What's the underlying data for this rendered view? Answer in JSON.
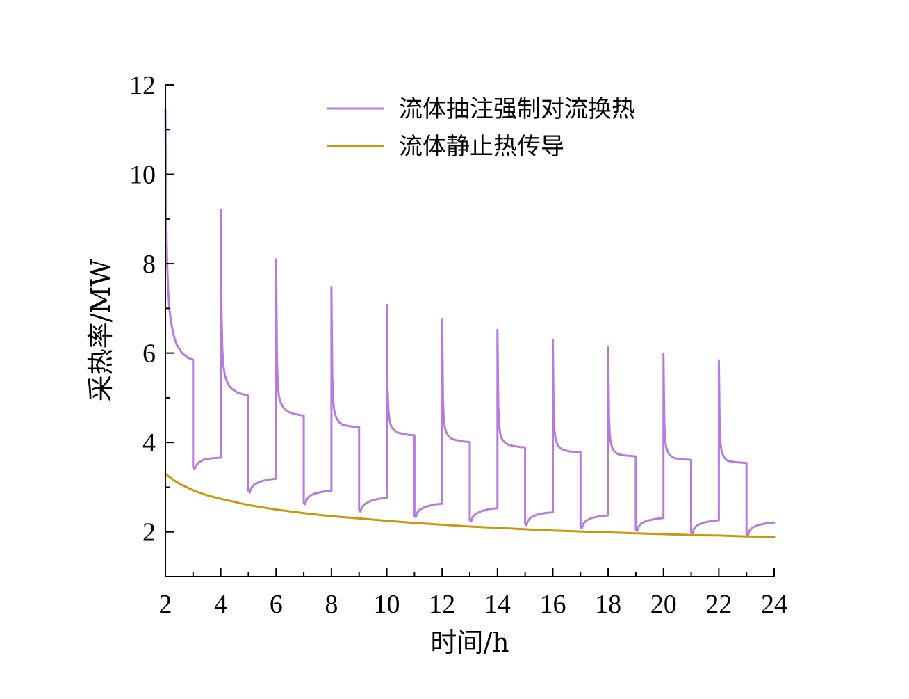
{
  "chart_data": {
    "type": "line",
    "xlabel": "时间/h",
    "ylabel": "采热率/MW",
    "xlim": [
      2,
      24
    ],
    "ylim": [
      1,
      12
    ],
    "xticks": [
      2,
      4,
      6,
      8,
      10,
      12,
      14,
      16,
      18,
      20,
      22,
      24
    ],
    "yticks": [
      2,
      4,
      6,
      8,
      10,
      12
    ],
    "grid": false,
    "legend_position": "top-right",
    "series": [
      {
        "name": "流体抽注强制对流换热",
        "color": "#b57bdf",
        "x": [
          2.0,
          2.03,
          2.06,
          2.1,
          2.15,
          2.2,
          2.3,
          2.4,
          2.6,
          2.8,
          3.0,
          3.0,
          3.05,
          3.1,
          3.2,
          3.4,
          3.7,
          4.0,
          4.0,
          4.03,
          4.06,
          4.1,
          4.15,
          4.2,
          4.3,
          4.4,
          4.6,
          4.8,
          5.0,
          5.0,
          5.05,
          5.1,
          5.2,
          5.4,
          5.7,
          6.0,
          6.0,
          6.03,
          6.06,
          6.1,
          6.15,
          6.2,
          6.3,
          6.4,
          6.6,
          6.8,
          7.0,
          7.0,
          7.05,
          7.1,
          7.2,
          7.4,
          7.7,
          8.0,
          8.0,
          8.03,
          8.06,
          8.1,
          8.15,
          8.2,
          8.3,
          8.4,
          8.6,
          8.8,
          9.0,
          9.0,
          9.05,
          9.1,
          9.2,
          9.4,
          9.7,
          10.0,
          10.0,
          10.03,
          10.06,
          10.1,
          10.15,
          10.2,
          10.3,
          10.4,
          10.6,
          10.8,
          11.0,
          11.0,
          11.05,
          11.1,
          11.2,
          11.4,
          11.7,
          12.0,
          12.0,
          12.03,
          12.06,
          12.1,
          12.15,
          12.2,
          12.3,
          12.4,
          12.6,
          12.8,
          13.0,
          13.0,
          13.05,
          13.1,
          13.2,
          13.4,
          13.7,
          14.0,
          14.0,
          14.03,
          14.06,
          14.1,
          14.15,
          14.2,
          14.3,
          14.4,
          14.6,
          14.8,
          15.0,
          15.0,
          15.05,
          15.1,
          15.2,
          15.4,
          15.7,
          16.0,
          16.0,
          16.03,
          16.06,
          16.1,
          16.15,
          16.2,
          16.3,
          16.4,
          16.6,
          16.8,
          17.0,
          17.0,
          17.05,
          17.1,
          17.2,
          17.4,
          17.7,
          18.0,
          18.0,
          18.03,
          18.06,
          18.1,
          18.15,
          18.2,
          18.3,
          18.4,
          18.6,
          18.8,
          19.0,
          19.0,
          19.05,
          19.1,
          19.2,
          19.4,
          19.7,
          20.0,
          20.0,
          20.03,
          20.06,
          20.1,
          20.15,
          20.2,
          20.3,
          20.4,
          20.6,
          20.8,
          21.0,
          21.0,
          21.05,
          21.1,
          21.2,
          21.4,
          21.7,
          22.0,
          22.0,
          22.03,
          22.06,
          22.1,
          22.15,
          22.2,
          22.3,
          22.4,
          22.6,
          22.8,
          23.0,
          23.0,
          23.05,
          23.1,
          23.2,
          23.4,
          23.7,
          24.0
        ],
        "y": [
          11.45,
          9.1,
          8.05,
          7.4,
          6.95,
          6.7,
          6.4,
          6.2,
          6.0,
          5.9,
          5.85,
          3.45,
          3.4,
          3.48,
          3.55,
          3.62,
          3.65,
          3.66,
          9.2,
          6.85,
          6.05,
          5.7,
          5.5,
          5.4,
          5.27,
          5.2,
          5.12,
          5.08,
          5.05,
          2.92,
          2.88,
          2.98,
          3.05,
          3.12,
          3.17,
          3.19,
          8.1,
          5.9,
          5.3,
          5.05,
          4.92,
          4.85,
          4.75,
          4.7,
          4.65,
          4.62,
          4.6,
          2.65,
          2.62,
          2.72,
          2.8,
          2.86,
          2.9,
          2.92,
          7.48,
          5.5,
          4.95,
          4.72,
          4.6,
          4.52,
          4.44,
          4.4,
          4.37,
          4.35,
          4.34,
          2.48,
          2.45,
          2.55,
          2.62,
          2.69,
          2.74,
          2.76,
          7.08,
          5.2,
          4.72,
          4.5,
          4.38,
          4.32,
          4.26,
          4.22,
          4.19,
          4.17,
          4.16,
          2.36,
          2.33,
          2.43,
          2.5,
          2.56,
          2.61,
          2.63,
          6.76,
          5.0,
          4.53,
          4.33,
          4.23,
          4.17,
          4.1,
          4.07,
          4.04,
          4.02,
          4.01,
          2.26,
          2.23,
          2.33,
          2.4,
          2.46,
          2.51,
          2.53,
          6.52,
          4.83,
          4.38,
          4.2,
          4.1,
          4.04,
          3.98,
          3.95,
          3.92,
          3.9,
          3.89,
          2.18,
          2.15,
          2.25,
          2.32,
          2.38,
          2.42,
          2.44,
          6.3,
          4.7,
          4.27,
          4.08,
          3.98,
          3.92,
          3.86,
          3.83,
          3.8,
          3.79,
          3.78,
          2.11,
          2.08,
          2.18,
          2.25,
          2.31,
          2.35,
          2.37,
          6.14,
          4.58,
          4.16,
          3.98,
          3.88,
          3.82,
          3.76,
          3.73,
          3.71,
          3.7,
          3.69,
          2.05,
          2.02,
          2.12,
          2.19,
          2.25,
          2.29,
          2.31,
          5.98,
          4.47,
          4.06,
          3.89,
          3.8,
          3.74,
          3.68,
          3.65,
          3.63,
          3.62,
          3.61,
          1.99,
          1.97,
          2.07,
          2.14,
          2.2,
          2.24,
          2.26,
          5.84,
          4.37,
          3.98,
          3.81,
          3.72,
          3.66,
          3.6,
          3.58,
          3.56,
          3.55,
          3.54,
          1.94,
          1.92,
          2.02,
          2.09,
          2.15,
          2.19,
          2.21
        ]
      },
      {
        "name": "流体静止热传导",
        "color": "#c9960f",
        "x": [
          2,
          2.25,
          2.5,
          3,
          3.5,
          4,
          5,
          6,
          7,
          8,
          9,
          10,
          11,
          12,
          13,
          14,
          15,
          16,
          17,
          18,
          19,
          20,
          21,
          22,
          23,
          24
        ],
        "y": [
          3.3,
          3.18,
          3.08,
          2.93,
          2.82,
          2.74,
          2.6,
          2.5,
          2.42,
          2.35,
          2.3,
          2.25,
          2.2,
          2.16,
          2.12,
          2.09,
          2.06,
          2.03,
          2.01,
          1.99,
          1.97,
          1.95,
          1.93,
          1.92,
          1.9,
          1.89
        ]
      }
    ]
  }
}
